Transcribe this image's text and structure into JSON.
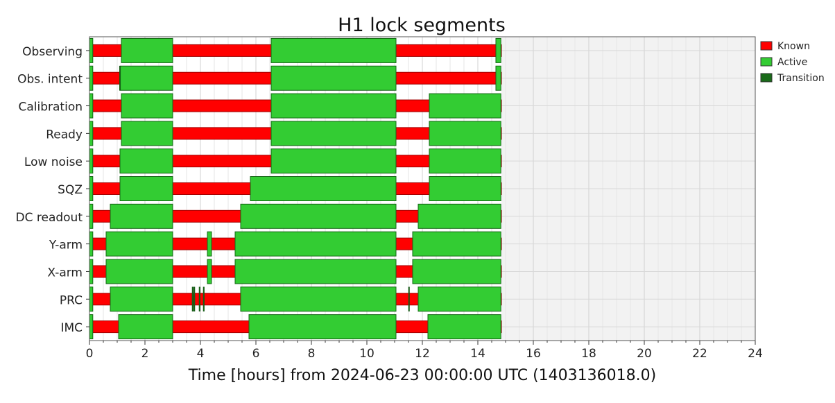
{
  "chart_data": {
    "type": "segments",
    "title": "H1 lock segments",
    "xlabel": "Time [hours] from 2024-06-23 00:00:00 UTC (1403136018.0)",
    "xlim": [
      0,
      24
    ],
    "xticks": [
      0,
      2,
      4,
      6,
      8,
      10,
      12,
      14,
      16,
      18,
      20,
      22,
      24
    ],
    "known_range": [
      0,
      14.85
    ],
    "grid": true,
    "legend": {
      "placement": "top-right",
      "entries": [
        {
          "label": "Known",
          "color": "#ff0000"
        },
        {
          "label": "Active",
          "color": "#33cc33"
        },
        {
          "label": "Transition",
          "color": "#1a6b1a"
        }
      ]
    },
    "rows": [
      {
        "label": "Observing",
        "active": [
          [
            0,
            0.12
          ],
          [
            1.15,
            3.0
          ],
          [
            6.55,
            11.05
          ],
          [
            14.65,
            14.83
          ]
        ],
        "transition": []
      },
      {
        "label": "Obs. intent",
        "active": [
          [
            0,
            0.12
          ],
          [
            1.1,
            3.0
          ],
          [
            6.55,
            11.05
          ],
          [
            14.65,
            14.83
          ]
        ],
        "transition": [
          [
            1.08,
            1.12
          ]
        ]
      },
      {
        "label": "Calibration",
        "active": [
          [
            0,
            0.12
          ],
          [
            1.15,
            3.0
          ],
          [
            6.55,
            11.05
          ],
          [
            12.25,
            14.83
          ]
        ],
        "transition": []
      },
      {
        "label": "Ready",
        "active": [
          [
            0,
            0.12
          ],
          [
            1.15,
            3.0
          ],
          [
            6.55,
            11.05
          ],
          [
            12.25,
            14.83
          ]
        ],
        "transition": []
      },
      {
        "label": "Low noise",
        "active": [
          [
            0,
            0.12
          ],
          [
            1.1,
            3.0
          ],
          [
            6.55,
            11.05
          ],
          [
            12.25,
            14.83
          ]
        ],
        "transition": []
      },
      {
        "label": "SQZ",
        "active": [
          [
            0,
            0.12
          ],
          [
            1.1,
            3.0
          ],
          [
            5.8,
            11.05
          ],
          [
            12.25,
            14.83
          ]
        ],
        "transition": []
      },
      {
        "label": "DC readout",
        "active": [
          [
            0,
            0.12
          ],
          [
            0.75,
            3.0
          ],
          [
            5.45,
            11.05
          ],
          [
            11.85,
            14.83
          ]
        ],
        "transition": []
      },
      {
        "label": "Y-arm",
        "active": [
          [
            0,
            0.12
          ],
          [
            0.6,
            3.0
          ],
          [
            4.25,
            4.4
          ],
          [
            5.25,
            11.05
          ],
          [
            11.65,
            14.83
          ]
        ],
        "transition": []
      },
      {
        "label": "X-arm",
        "active": [
          [
            0,
            0.12
          ],
          [
            0.6,
            3.0
          ],
          [
            4.25,
            4.4
          ],
          [
            5.25,
            11.05
          ],
          [
            11.65,
            14.83
          ]
        ],
        "transition": []
      },
      {
        "label": "PRC",
        "active": [
          [
            0,
            0.12
          ],
          [
            0.75,
            3.0
          ],
          [
            5.45,
            11.05
          ],
          [
            11.85,
            14.83
          ]
        ],
        "transition": [
          [
            3.7,
            3.74
          ],
          [
            3.76,
            3.8
          ],
          [
            3.95,
            3.99
          ],
          [
            4.1,
            4.14
          ],
          [
            11.5,
            11.53
          ]
        ]
      },
      {
        "label": "IMC",
        "active": [
          [
            0,
            0.12
          ],
          [
            1.05,
            3.0
          ],
          [
            5.75,
            11.05
          ],
          [
            12.2,
            14.83
          ]
        ],
        "transition": []
      }
    ]
  }
}
